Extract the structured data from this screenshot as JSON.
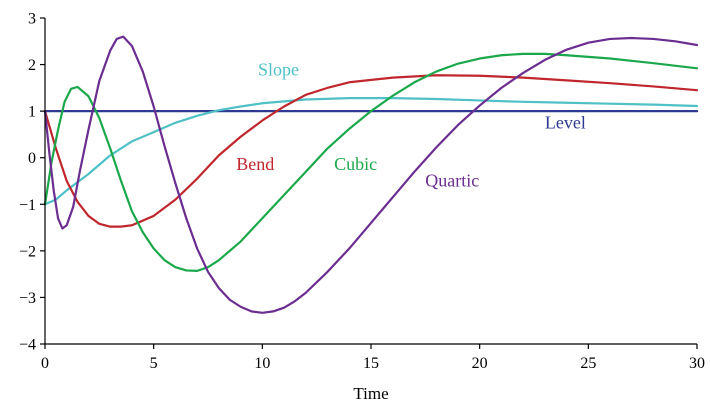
{
  "chart_data": {
    "type": "line",
    "title": "",
    "xlabel": "Time",
    "ylabel": "",
    "xlim": [
      0,
      30
    ],
    "ylim": [
      -4,
      3
    ],
    "xticks": [
      0,
      5,
      10,
      15,
      20,
      25,
      30
    ],
    "yticks": [
      -4,
      -3,
      -2,
      -1,
      0,
      1,
      2,
      3
    ],
    "grid": false,
    "legend": "inline labels",
    "series": [
      {
        "name": "Level",
        "color": "#2e3a91",
        "label_at": [
          23,
          0.63
        ],
        "points": [
          [
            0,
            1
          ],
          [
            30,
            1
          ]
        ]
      },
      {
        "name": "Slope",
        "color": "#4fc1c6",
        "label_at": [
          9.8,
          1.77
        ],
        "points": [
          [
            0,
            -1
          ],
          [
            0.5,
            -0.9
          ],
          [
            1,
            -0.7
          ],
          [
            2,
            -0.35
          ],
          [
            3,
            0.05
          ],
          [
            4,
            0.35
          ],
          [
            5,
            0.55
          ],
          [
            6,
            0.75
          ],
          [
            7,
            0.9
          ],
          [
            8,
            1.02
          ],
          [
            9,
            1.1
          ],
          [
            10,
            1.17
          ],
          [
            12,
            1.25
          ],
          [
            14,
            1.28
          ],
          [
            16,
            1.28
          ],
          [
            18,
            1.26
          ],
          [
            20,
            1.23
          ],
          [
            22,
            1.2
          ],
          [
            24,
            1.18
          ],
          [
            26,
            1.16
          ],
          [
            28,
            1.14
          ],
          [
            30,
            1.11
          ]
        ]
      },
      {
        "name": "Bend",
        "color": "#c0272d",
        "label_at": [
          8.8,
          -0.26
        ],
        "points": [
          [
            0,
            1
          ],
          [
            0.5,
            0.2
          ],
          [
            1,
            -0.5
          ],
          [
            1.5,
            -0.95
          ],
          [
            2,
            -1.25
          ],
          [
            2.5,
            -1.42
          ],
          [
            3,
            -1.48
          ],
          [
            3.5,
            -1.48
          ],
          [
            4,
            -1.45
          ],
          [
            5,
            -1.25
          ],
          [
            6,
            -0.9
          ],
          [
            7,
            -0.45
          ],
          [
            8,
            0.05
          ],
          [
            9,
            0.45
          ],
          [
            10,
            0.8
          ],
          [
            11,
            1.1
          ],
          [
            12,
            1.35
          ],
          [
            13,
            1.5
          ],
          [
            14,
            1.62
          ],
          [
            16,
            1.72
          ],
          [
            18,
            1.77
          ],
          [
            20,
            1.76
          ],
          [
            22,
            1.72
          ],
          [
            24,
            1.66
          ],
          [
            26,
            1.6
          ],
          [
            28,
            1.53
          ],
          [
            30,
            1.45
          ]
        ]
      },
      {
        "name": "Cubic",
        "color": "#1ba84b",
        "label_at": [
          13.3,
          -0.26
        ],
        "points": [
          [
            0,
            -1
          ],
          [
            0.3,
            -0.1
          ],
          [
            0.6,
            0.6
          ],
          [
            0.9,
            1.2
          ],
          [
            1.2,
            1.48
          ],
          [
            1.5,
            1.52
          ],
          [
            2,
            1.32
          ],
          [
            2.5,
            0.85
          ],
          [
            3,
            0.2
          ],
          [
            3.5,
            -0.5
          ],
          [
            4,
            -1.15
          ],
          [
            4.5,
            -1.6
          ],
          [
            5,
            -1.95
          ],
          [
            5.5,
            -2.2
          ],
          [
            6,
            -2.35
          ],
          [
            6.5,
            -2.42
          ],
          [
            7,
            -2.43
          ],
          [
            7.5,
            -2.35
          ],
          [
            8,
            -2.2
          ],
          [
            9,
            -1.8
          ],
          [
            10,
            -1.3
          ],
          [
            11,
            -0.8
          ],
          [
            12,
            -0.3
          ],
          [
            13,
            0.2
          ],
          [
            14,
            0.62
          ],
          [
            15,
            1.0
          ],
          [
            16,
            1.33
          ],
          [
            17,
            1.62
          ],
          [
            18,
            1.85
          ],
          [
            19,
            2.02
          ],
          [
            20,
            2.13
          ],
          [
            21,
            2.2
          ],
          [
            22,
            2.23
          ],
          [
            23,
            2.23
          ],
          [
            24,
            2.2
          ],
          [
            26,
            2.13
          ],
          [
            28,
            2.03
          ],
          [
            30,
            1.92
          ]
        ]
      },
      {
        "name": "Quartic",
        "color": "#6b2d90",
        "label_at": [
          17.5,
          -0.62
        ],
        "points": [
          [
            0,
            1
          ],
          [
            0.2,
            0.1
          ],
          [
            0.4,
            -0.7
          ],
          [
            0.6,
            -1.3
          ],
          [
            0.8,
            -1.52
          ],
          [
            1,
            -1.45
          ],
          [
            1.3,
            -1.05
          ],
          [
            1.6,
            -0.3
          ],
          [
            2,
            0.6
          ],
          [
            2.5,
            1.65
          ],
          [
            3,
            2.3
          ],
          [
            3.3,
            2.55
          ],
          [
            3.6,
            2.6
          ],
          [
            4,
            2.4
          ],
          [
            4.5,
            1.85
          ],
          [
            5,
            1.1
          ],
          [
            5.5,
            0.25
          ],
          [
            6,
            -0.55
          ],
          [
            6.5,
            -1.3
          ],
          [
            7,
            -1.95
          ],
          [
            7.5,
            -2.45
          ],
          [
            8,
            -2.8
          ],
          [
            8.5,
            -3.05
          ],
          [
            9,
            -3.2
          ],
          [
            9.5,
            -3.3
          ],
          [
            10,
            -3.33
          ],
          [
            10.5,
            -3.3
          ],
          [
            11,
            -3.22
          ],
          [
            11.5,
            -3.08
          ],
          [
            12,
            -2.9
          ],
          [
            13,
            -2.45
          ],
          [
            14,
            -1.95
          ],
          [
            15,
            -1.4
          ],
          [
            16,
            -0.85
          ],
          [
            17,
            -0.3
          ],
          [
            18,
            0.22
          ],
          [
            19,
            0.7
          ],
          [
            20,
            1.12
          ],
          [
            21,
            1.5
          ],
          [
            22,
            1.82
          ],
          [
            23,
            2.1
          ],
          [
            24,
            2.32
          ],
          [
            25,
            2.47
          ],
          [
            26,
            2.55
          ],
          [
            27,
            2.57
          ],
          [
            28,
            2.55
          ],
          [
            29,
            2.5
          ],
          [
            30,
            2.42
          ]
        ]
      }
    ]
  }
}
